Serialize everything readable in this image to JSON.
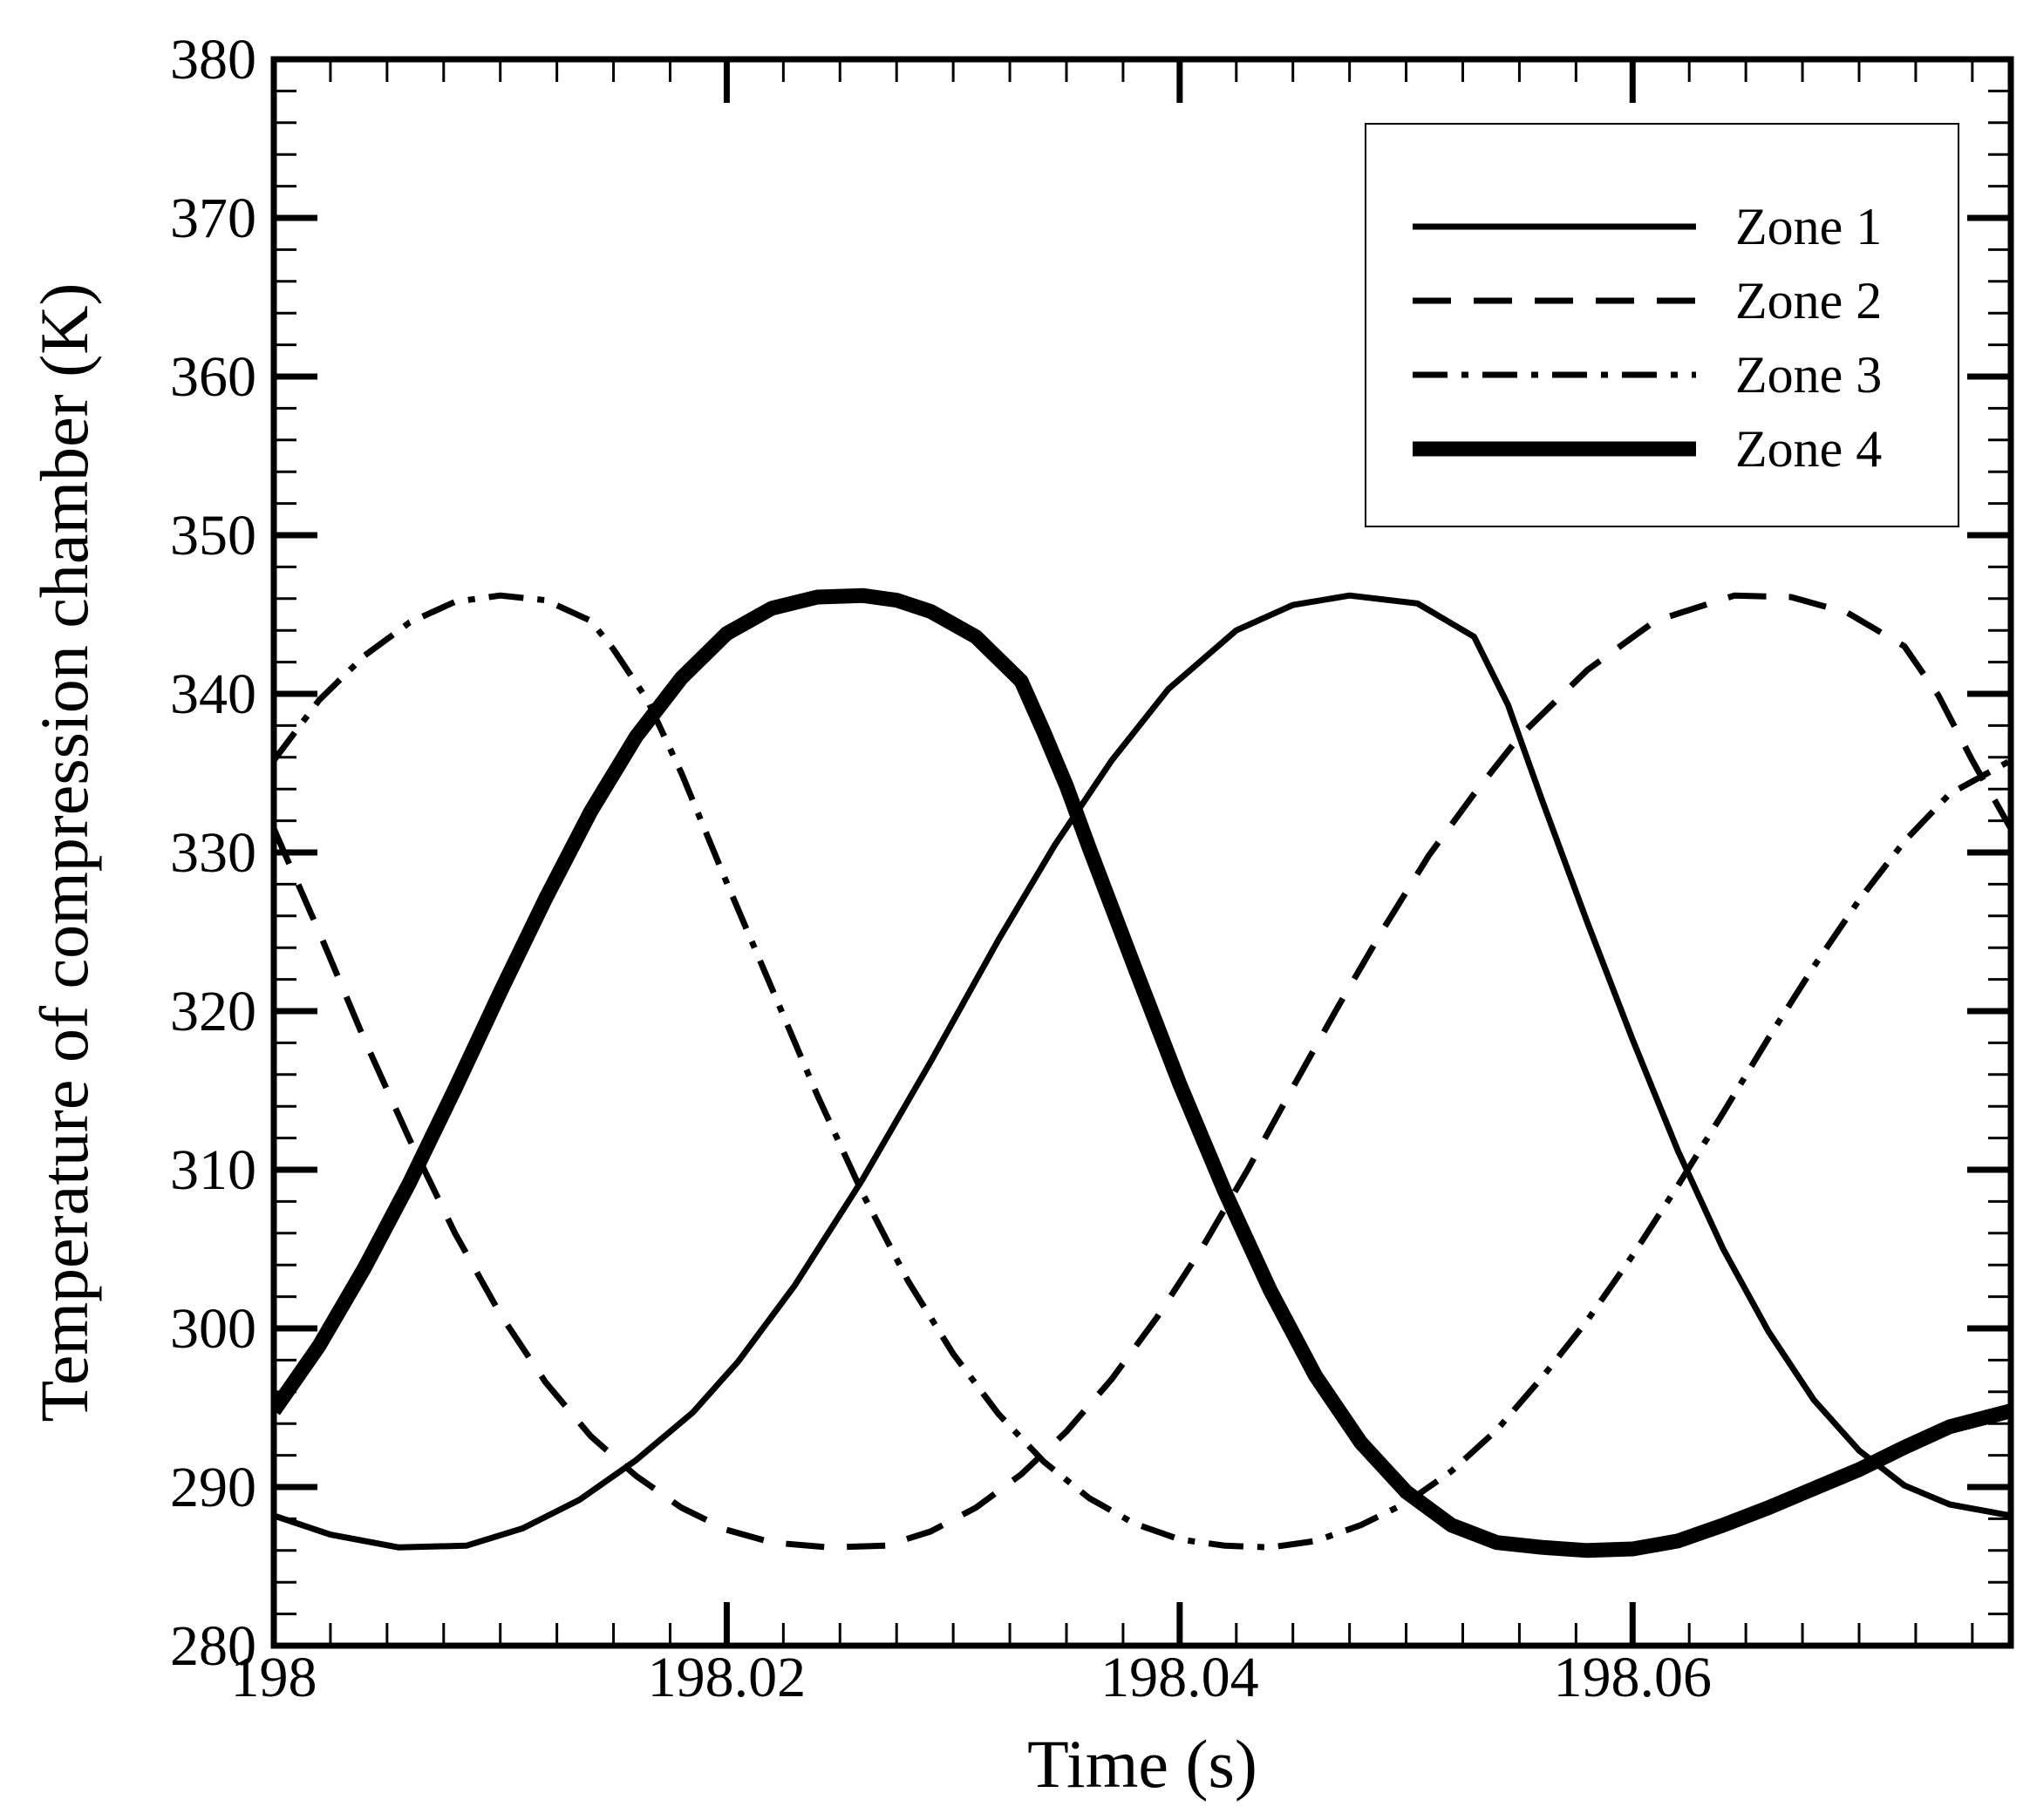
{
  "chart_data": {
    "type": "line",
    "title": "",
    "xlabel": "Time (s)",
    "ylabel": "Temperature of compression chamber (K)",
    "xlim": [
      198,
      198.0767
    ],
    "ylim": [
      280,
      380
    ],
    "grid": false,
    "legend_position": "top-right",
    "x_ticks": [
      {
        "value": 198,
        "label": "198"
      },
      {
        "value": 198.02,
        "label": "198.02"
      },
      {
        "value": 198.04,
        "label": "198.04"
      },
      {
        "value": 198.06,
        "label": "198.06"
      }
    ],
    "y_ticks": [
      {
        "value": 280,
        "label": "280"
      },
      {
        "value": 290,
        "label": "290"
      },
      {
        "value": 300,
        "label": "300"
      },
      {
        "value": 310,
        "label": "310"
      },
      {
        "value": 320,
        "label": "320"
      },
      {
        "value": 330,
        "label": "330"
      },
      {
        "value": 340,
        "label": "340"
      },
      {
        "value": 350,
        "label": "350"
      },
      {
        "value": 360,
        "label": "360"
      },
      {
        "value": 370,
        "label": "370"
      },
      {
        "value": 380,
        "label": "380"
      }
    ],
    "series": [
      {
        "name": "Zone 1",
        "style": "solid",
        "weight": "thin",
        "x": [
          198.0,
          198.0025,
          198.0055,
          198.0085,
          198.011,
          198.0135,
          198.016,
          198.0185,
          198.0205,
          198.023,
          198.026,
          198.029,
          198.032,
          198.0345,
          198.037,
          198.0395,
          198.0425,
          198.045,
          198.0475,
          198.0505,
          198.053,
          198.0545,
          198.056,
          198.058,
          198.06,
          198.062,
          198.064,
          198.066,
          198.068,
          198.07,
          198.072,
          198.074,
          198.0767
        ],
        "values": [
          288.2,
          287.0,
          286.2,
          286.3,
          287.4,
          289.2,
          291.7,
          294.7,
          297.9,
          302.7,
          309.4,
          316.8,
          324.5,
          330.5,
          335.8,
          340.3,
          344.0,
          345.6,
          346.2,
          345.7,
          343.6,
          339.3,
          333.3,
          325.6,
          318.2,
          311.2,
          305.0,
          299.8,
          295.5,
          292.3,
          290.1,
          288.9,
          288.2
        ]
      },
      {
        "name": "Zone 2",
        "style": "dashed",
        "weight": "thin",
        "x": [
          198.0,
          198.002,
          198.004,
          198.006,
          198.008,
          198.01,
          198.012,
          198.014,
          198.016,
          198.018,
          198.02,
          198.022,
          198.0245,
          198.027,
          198.029,
          198.031,
          198.033,
          198.035,
          198.037,
          198.039,
          198.041,
          198.043,
          198.045,
          198.047,
          198.049,
          198.051,
          198.053,
          198.055,
          198.058,
          198.061,
          198.0645,
          198.067,
          198.0695,
          198.072,
          198.0735,
          198.075,
          198.0767
        ],
        "values": [
          331.5,
          325.0,
          318.2,
          311.9,
          306.0,
          300.9,
          296.6,
          293.2,
          290.7,
          288.7,
          287.3,
          286.5,
          286.2,
          286.3,
          287.2,
          288.7,
          290.8,
          293.5,
          296.8,
          300.7,
          305.1,
          310.0,
          315.2,
          320.3,
          325.2,
          329.8,
          333.7,
          337.3,
          341.5,
          344.6,
          346.2,
          346.1,
          345.1,
          343.0,
          339.9,
          335.8,
          331.5
        ]
      },
      {
        "name": "Zone 3",
        "style": "dashdot",
        "weight": "thin",
        "x": [
          198.0,
          198.002,
          198.004,
          198.006,
          198.008,
          198.01,
          198.012,
          198.014,
          198.015,
          198.0165,
          198.018,
          198.02,
          198.022,
          198.024,
          198.026,
          198.028,
          198.03,
          198.032,
          198.034,
          198.036,
          198.038,
          198.04,
          198.042,
          198.044,
          198.046,
          198.048,
          198.05,
          198.052,
          198.054,
          198.056,
          198.058,
          198.06,
          198.062,
          198.064,
          198.066,
          198.068,
          198.07,
          198.072,
          198.074,
          198.0767
        ],
        "values": [
          335.8,
          339.6,
          342.4,
          344.5,
          345.8,
          346.2,
          345.9,
          344.6,
          342.8,
          339.6,
          335.0,
          328.1,
          321.4,
          314.7,
          308.5,
          303.0,
          298.4,
          294.6,
          291.6,
          289.3,
          287.7,
          286.7,
          286.3,
          286.2,
          286.6,
          287.6,
          289.0,
          291.0,
          293.6,
          296.9,
          300.5,
          304.6,
          309.0,
          313.6,
          318.3,
          322.8,
          327.0,
          330.7,
          333.7,
          335.8
        ]
      },
      {
        "name": "Zone 4",
        "style": "solid",
        "weight": "thick",
        "x": [
          198.0,
          198.002,
          198.004,
          198.006,
          198.008,
          198.01,
          198.012,
          198.014,
          198.016,
          198.018,
          198.02,
          198.022,
          198.024,
          198.026,
          198.0275,
          198.029,
          198.031,
          198.033,
          198.034,
          198.035,
          198.036,
          198.038,
          198.04,
          198.042,
          198.044,
          198.046,
          198.048,
          198.05,
          198.052,
          198.054,
          198.056,
          198.058,
          198.06,
          198.062,
          198.064,
          198.066,
          198.068,
          198.07,
          198.072,
          198.074,
          198.0767
        ],
        "values": [
          294.8,
          298.9,
          303.8,
          309.2,
          315.1,
          321.2,
          327.1,
          332.6,
          337.3,
          341.0,
          343.8,
          345.4,
          346.1,
          346.2,
          345.9,
          345.2,
          343.6,
          340.8,
          337.6,
          334.2,
          330.3,
          322.8,
          315.4,
          308.6,
          302.4,
          297.0,
          292.8,
          289.7,
          287.6,
          286.5,
          286.2,
          286.0,
          286.1,
          286.6,
          287.6,
          288.7,
          289.9,
          291.1,
          292.5,
          293.8,
          294.8
        ]
      }
    ]
  }
}
